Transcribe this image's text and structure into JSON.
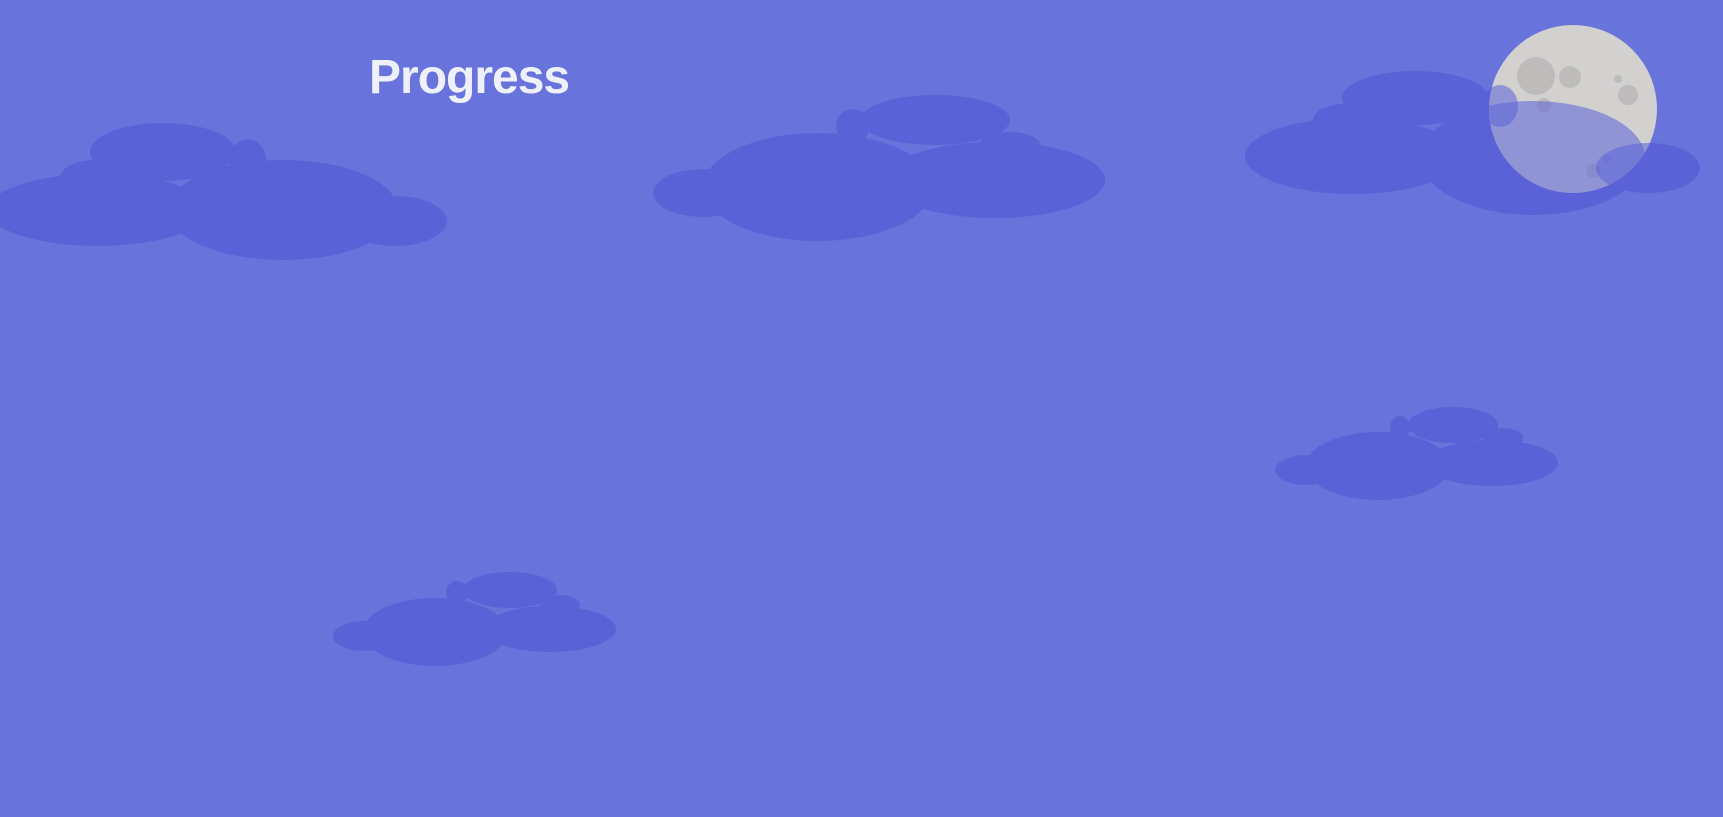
{
  "title": "Progress",
  "colors": {
    "sky": "#6873db",
    "cloud": "#5b62d8",
    "title_text": "#eef0fb",
    "moon": "#d3d1cf",
    "moon_crater": "#bdbcbb"
  },
  "icons": {
    "moon": "moon-icon",
    "cloud": "cloud-icon"
  }
}
